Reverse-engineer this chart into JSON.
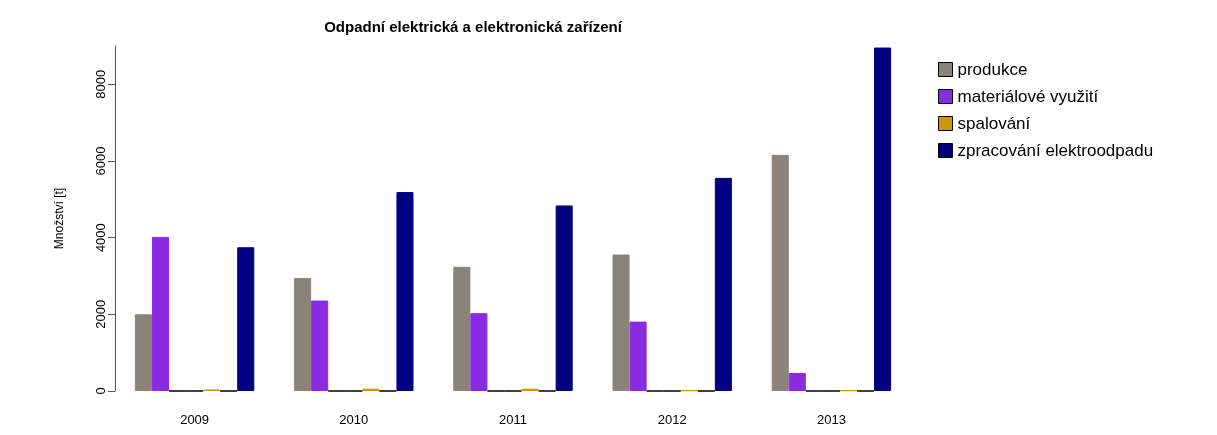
{
  "chart_data": {
    "type": "bar",
    "title": "Odpadní elektrická a elektronická zařízení",
    "ylabel": "Množství [t]",
    "categories": [
      "2009",
      "2010",
      "2011",
      "2012",
      "2013"
    ],
    "series": [
      {
        "name": "produkce",
        "color": "#8b8378",
        "values": [
          2000,
          2950,
          3240,
          3560,
          6160
        ]
      },
      {
        "name": "materiálové využití",
        "color": "#8a2be2",
        "values": [
          4020,
          2360,
          2030,
          1810,
          470
        ]
      },
      {
        "color": "#000000",
        "values": [
          0,
          0,
          0,
          0,
          0
        ]
      },
      {
        "color": "#000000",
        "values": [
          0,
          0,
          0,
          0,
          0
        ]
      },
      {
        "name": "spalování",
        "color": "#cd950c",
        "values": [
          40,
          60,
          60,
          20,
          20
        ]
      },
      {
        "color": "#000000",
        "values": [
          0,
          0,
          0,
          0,
          0
        ]
      },
      {
        "name": "zpracování elektroodpadu",
        "color": "#000080",
        "values": [
          3750,
          5190,
          4840,
          5560,
          8960
        ]
      }
    ],
    "ylim": [
      0,
      9000
    ],
    "yticks": [
      0,
      2000,
      4000,
      6000,
      8000
    ],
    "grid": false,
    "legend": "top right"
  }
}
